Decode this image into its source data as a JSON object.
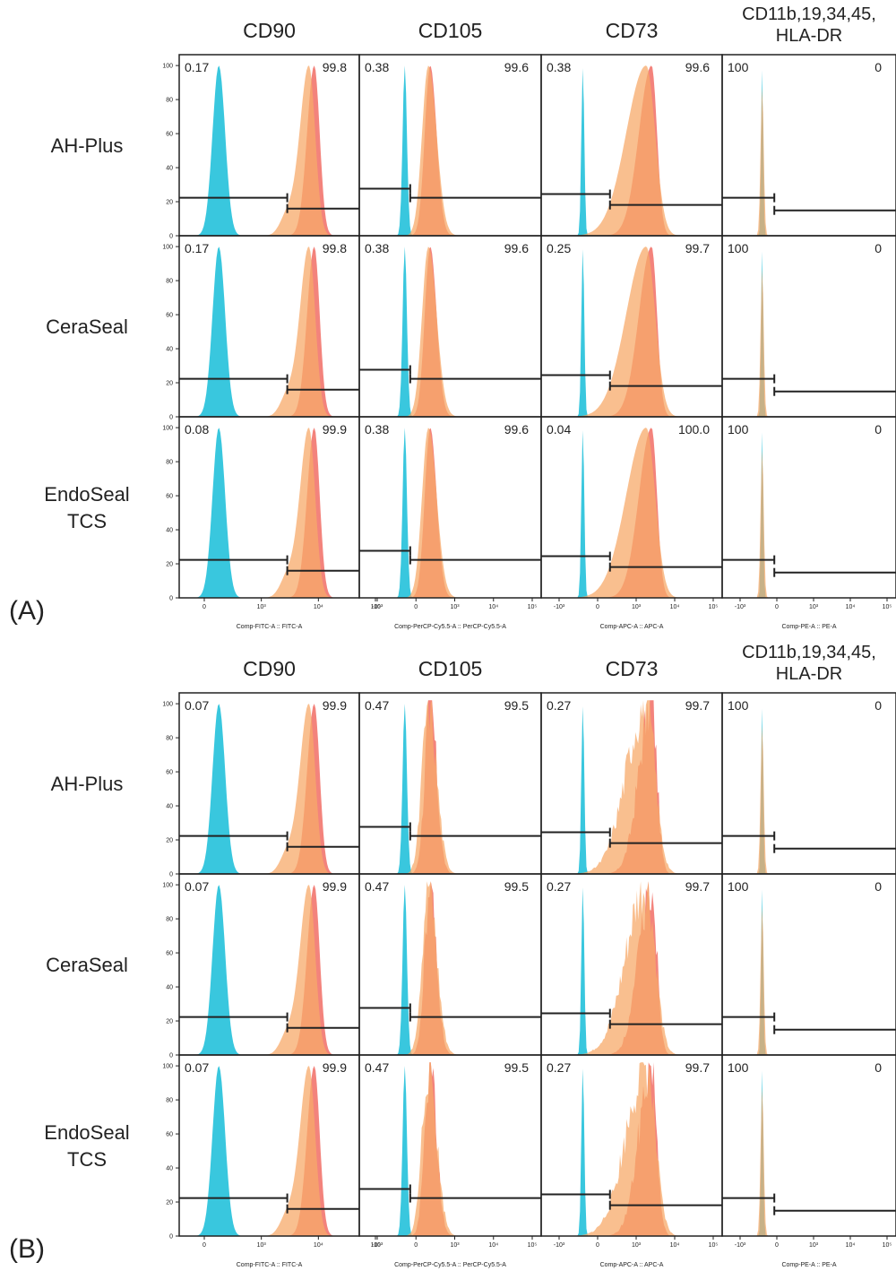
{
  "colors": {
    "cyan": "#2ec4dc",
    "orange": "#f7a96a",
    "red": "#ef5a50",
    "frame": "#222222",
    "text": "#222222"
  },
  "chart_data": {
    "type": "histogram-grid",
    "columns": [
      "CD90",
      "CD105",
      "CD73",
      "CD11b,19,34,45,\nHLA-DR"
    ],
    "rows": [
      "AH-Plus",
      "CeraSeal",
      "EndoSeal\nTCS"
    ],
    "y_ticks": [
      "0",
      "20",
      "40",
      "60",
      "80",
      "100"
    ],
    "ylim": [
      0,
      100
    ],
    "x_axis_labels": [
      "Comp-FITC-A :: FITC-A",
      "Comp-PerCP-Cy5.5-A :: PerCP-Cy5.5-A",
      "Comp-APC-A :: APC-A",
      "Comp-PE-A :: PE-A"
    ],
    "x_ticks": [
      [
        "0",
        "10³",
        "10⁴",
        "10⁵"
      ],
      [
        "-10³",
        "0",
        "10³",
        "10⁴",
        "10⁵"
      ],
      [
        "-10³",
        "0",
        "10³",
        "10⁴",
        "10⁵"
      ],
      [
        "-10³",
        "0",
        "10³",
        "10⁴",
        "10⁵"
      ]
    ],
    "panels": [
      {
        "label": "(A)",
        "values": [
          [
            [
              "0.17",
              "99.8"
            ],
            [
              "0.38",
              "99.6"
            ],
            [
              "0.38",
              "99.6"
            ],
            [
              "100",
              "0"
            ]
          ],
          [
            [
              "0.17",
              "99.8"
            ],
            [
              "0.38",
              "99.6"
            ],
            [
              "0.25",
              "99.7"
            ],
            [
              "100",
              "0"
            ]
          ],
          [
            [
              "0.08",
              "99.9"
            ],
            [
              "0.38",
              "99.6"
            ],
            [
              "0.04",
              "100.0"
            ],
            [
              "100",
              "0"
            ]
          ]
        ]
      },
      {
        "label": "(B)",
        "values": [
          [
            [
              "0.07",
              "99.9"
            ],
            [
              "0.47",
              "99.5"
            ],
            [
              "0.27",
              "99.7"
            ],
            [
              "100",
              "0"
            ]
          ],
          [
            [
              "0.07",
              "99.9"
            ],
            [
              "0.47",
              "99.5"
            ],
            [
              "0.27",
              "99.7"
            ],
            [
              "100",
              "0"
            ]
          ],
          [
            [
              "0.07",
              "99.9"
            ],
            [
              "0.47",
              "99.5"
            ],
            [
              "0.27",
              "99.7"
            ],
            [
              "100",
              "0"
            ]
          ]
        ]
      }
    ]
  }
}
